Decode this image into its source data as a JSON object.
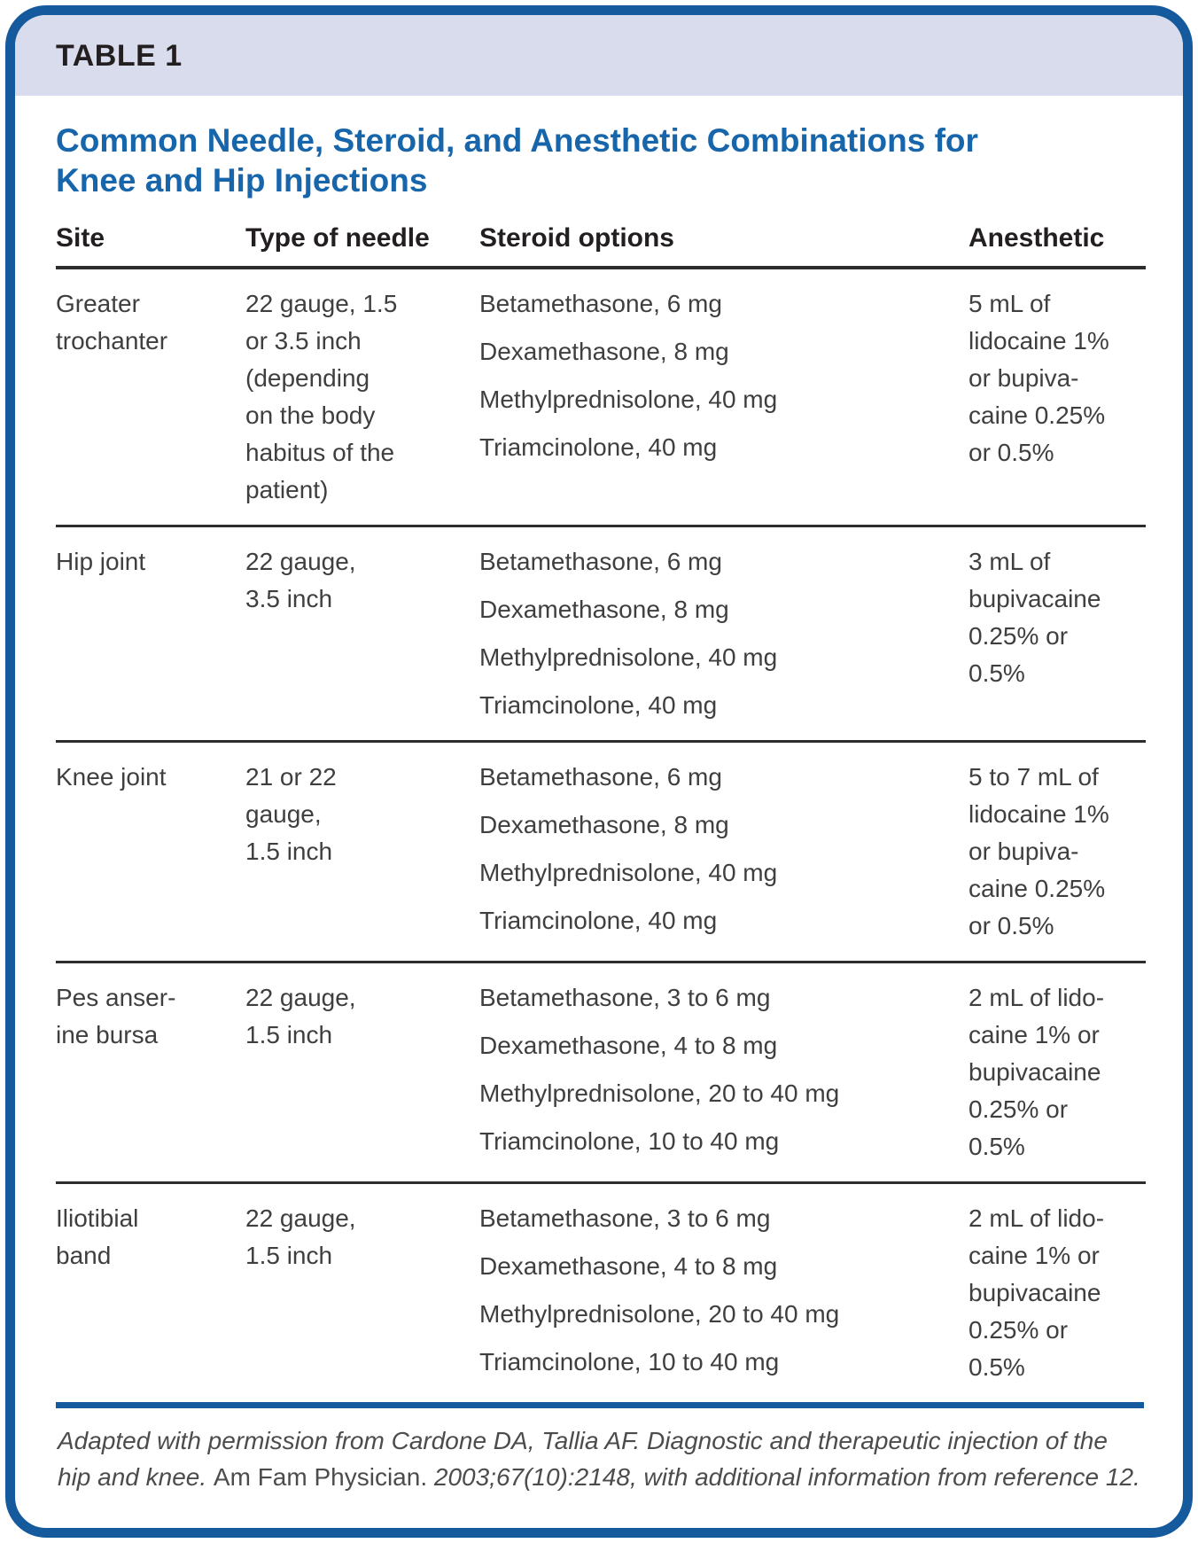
{
  "table_label": "TABLE 1",
  "title": "Common Needle, Steroid, and Anesthetic Combinations for Knee and Hip Injections",
  "colors": {
    "frame_blue": "#155a9c",
    "header_band": "#d9dcec",
    "title_blue": "#1766ab",
    "rule_dark": "#2d2d2d"
  },
  "columns": [
    "Site",
    "Type of needle",
    "Steroid options",
    "Anesthetic"
  ],
  "rows": [
    {
      "site": "Greater\ntrochanter",
      "needle": "22 gauge, 1.5\nor 3.5 inch\n(depending\non the body\nhabitus of the\npatient)",
      "steroids": [
        "Betamethasone, 6 mg",
        "Dexamethasone, 8 mg",
        "Methylprednisolone, 40 mg",
        "Triamcinolone, 40 mg"
      ],
      "anesthetic": "5 mL of\nlidocaine 1%\nor bupiva-\ncaine 0.25%\nor 0.5%"
    },
    {
      "site": "Hip joint",
      "needle": "22 gauge,\n3.5 inch",
      "steroids": [
        "Betamethasone, 6 mg",
        "Dexamethasone, 8 mg",
        "Methylprednisolone, 40 mg",
        "Triamcinolone, 40 mg"
      ],
      "anesthetic": "3 mL of\nbupivacaine\n0.25% or\n0.5%"
    },
    {
      "site": "Knee joint",
      "needle": "21 or 22\ngauge,\n1.5 inch",
      "steroids": [
        "Betamethasone, 6 mg",
        "Dexamethasone, 8 mg",
        "Methylprednisolone, 40 mg",
        "Triamcinolone, 40 mg"
      ],
      "anesthetic": "5 to 7 mL of\nlidocaine 1%\nor bupiva-\ncaine 0.25%\nor 0.5%"
    },
    {
      "site": "Pes anser-\nine bursa",
      "needle": "22 gauge,\n1.5 inch",
      "steroids": [
        "Betamethasone, 3 to 6 mg",
        "Dexamethasone, 4 to 8 mg",
        "Methylprednisolone, 20 to 40 mg",
        "Triamcinolone, 10 to 40 mg"
      ],
      "anesthetic": "2 mL of lido-\ncaine 1% or\nbupivacaine\n0.25% or\n0.5%"
    },
    {
      "site": "Iliotibial\nband",
      "needle": "22 gauge,\n1.5 inch",
      "steroids": [
        "Betamethasone, 3 to 6 mg",
        "Dexamethasone, 4 to 8 mg",
        "Methylprednisolone, 20 to 40 mg",
        "Triamcinolone, 10 to 40 mg"
      ],
      "anesthetic": "2 mL of lido-\ncaine 1% or\nbupivacaine\n0.25% or\n0.5%"
    }
  ],
  "footnote": {
    "italic_lead": "Adapted with permission from Cardone DA, Tallia AF. Diagnostic and therapeutic injection of the hip and knee. ",
    "roman": "Am Fam Physician. ",
    "italic_tail": "2003;67(10):2148, with additional information from reference 12."
  }
}
